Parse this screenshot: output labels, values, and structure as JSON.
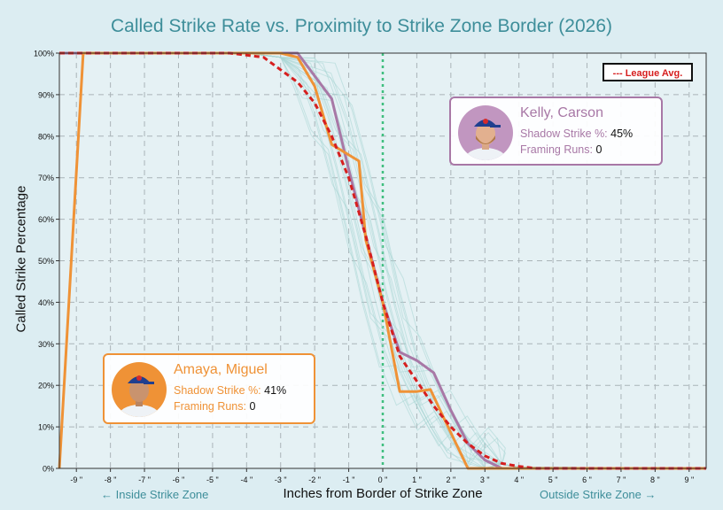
{
  "title": "Called Strike Rate vs. Proximity to Strike Zone Border (2026)",
  "chart_data": {
    "type": "line",
    "xlabel": "Inches from Border of Strike Zone",
    "ylabel": "Called Strike Percentage",
    "x_direction_left": "← Inside Strike Zone",
    "x_direction_right": "Outside Strike Zone →",
    "xlim": [
      -9.5,
      9.5
    ],
    "ylim": [
      0,
      100
    ],
    "x_ticks": [
      -9,
      -8,
      -7,
      -6,
      -5,
      -4,
      -3,
      -2,
      -1,
      0,
      1,
      2,
      3,
      4,
      5,
      6,
      7,
      8,
      9
    ],
    "x_tick_labels": [
      "-9 \"",
      "-8 \"",
      "-7 \"",
      "-6 \"",
      "-5 \"",
      "-4 \"",
      "-3 \"",
      "-2 \"",
      "-1 \"",
      "0 \"",
      "1 \"",
      "2 \"",
      "3 \"",
      "4 \"",
      "5 \"",
      "6 \"",
      "7 \"",
      "8 \"",
      "9 \""
    ],
    "y_ticks": [
      0,
      10,
      20,
      30,
      40,
      50,
      60,
      70,
      80,
      90,
      100
    ],
    "y_tick_labels": [
      "0%",
      "10%",
      "20%",
      "30%",
      "40%",
      "50%",
      "60%",
      "70%",
      "80%",
      "90%",
      "100%"
    ],
    "grid": true,
    "zone_border_line": 0,
    "legend": {
      "label": "--- League Avg.",
      "position": "top-right"
    },
    "league_avg": {
      "color": "#d61f1f",
      "x": [
        -9.5,
        -5,
        -4.5,
        -4,
        -3.5,
        -3,
        -2.5,
        -2,
        -1.5,
        -1,
        -0.5,
        0,
        0.5,
        1,
        1.5,
        2,
        2.5,
        3,
        3.5,
        4,
        4.5,
        9.5
      ],
      "y": [
        100,
        100,
        100,
        99.5,
        99,
        96,
        93,
        88,
        80,
        70,
        56,
        40,
        27,
        21,
        15,
        10,
        6,
        3,
        1.2,
        0.5,
        0,
        0
      ]
    },
    "series": [
      {
        "name": "Kelly, Carson",
        "color": "#a878a6",
        "x": [
          -9.5,
          -5,
          -2.5,
          -1.5,
          -1,
          -0.5,
          0,
          0.5,
          1,
          1.5,
          2,
          2.5,
          3,
          3.5,
          4,
          9.5
        ],
        "y": [
          100,
          100,
          100,
          89,
          72,
          56,
          40,
          28,
          26,
          23,
          14,
          6,
          2,
          0,
          0,
          0
        ]
      },
      {
        "name": "Amaya, Miguel",
        "color": "#ef9236",
        "x": [
          -9.5,
          -8.8,
          -8,
          -5,
          -4,
          -3.5,
          -3,
          -2.5,
          -2,
          -1.5,
          -0.7,
          -0.5,
          0,
          0.5,
          1,
          1.4,
          1.8,
          2.5,
          3,
          9.5
        ],
        "y": [
          0,
          100,
          100,
          100,
          100,
          100,
          100,
          99,
          92,
          78,
          74,
          55,
          40,
          18.5,
          18.5,
          19,
          12,
          0,
          0,
          0
        ]
      }
    ],
    "background_lines": {
      "count": 20,
      "color": "#a7d5d4",
      "description_x": [
        -9.5,
        -4,
        -3,
        -2,
        -1.5,
        -1,
        -0.5,
        0,
        0.5,
        1,
        1.5,
        2,
        2.5,
        3,
        3.5,
        4,
        9.5
      ],
      "base_y": [
        100,
        100,
        99,
        94,
        85,
        72,
        57,
        41,
        28,
        20,
        14,
        9,
        5,
        2.5,
        1,
        0.3,
        0
      ]
    }
  },
  "cards": {
    "kelly": {
      "name": "Kelly, Carson",
      "shadow_label": "Shadow Strike %:",
      "shadow_value": "45%",
      "framing_label": "Framing Runs:",
      "framing_value": "0",
      "color": "#a878a6",
      "avatar": "player-headshot-icon"
    },
    "amaya": {
      "name": "Amaya, Miguel",
      "shadow_label": "Shadow Strike %:",
      "shadow_value": "41%",
      "framing_label": "Framing Runs:",
      "framing_value": "0",
      "color": "#ef9236",
      "avatar": "player-headshot-icon"
    }
  }
}
